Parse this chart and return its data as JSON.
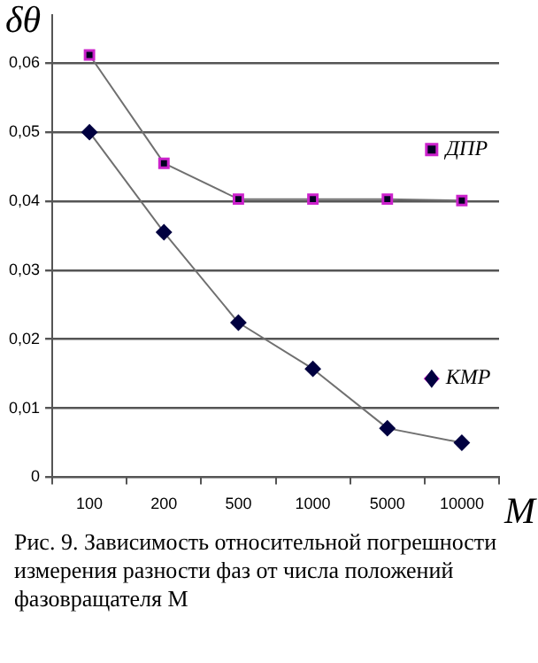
{
  "chart_data": {
    "type": "line",
    "title": "Рис. 9. Зависимость относительной погрешности измерения разности фаз от числа положений фазовращателя M",
    "xlabel": "M",
    "ylabel": "δθ",
    "categories": [
      "100",
      "200",
      "500",
      "1000",
      "5000",
      "10000"
    ],
    "series": [
      {
        "name": "ДПР",
        "color": "#cc22cc",
        "marker": "square",
        "values": [
          0.0612,
          0.0455,
          0.0403,
          0.0403,
          0.0403,
          0.0401
        ]
      },
      {
        "name": "КМР",
        "color": "#000040",
        "marker": "diamond",
        "values": [
          0.05,
          0.0355,
          0.0224,
          0.0157,
          0.0071,
          0.005
        ]
      }
    ],
    "ylim": [
      0,
      0.067
    ],
    "yticks": [
      0,
      {
        "value": 0.01,
        "label": "0,01"
      },
      {
        "value": 0.02,
        "label": "0,02"
      },
      {
        "value": 0.03,
        "label": "0,03"
      },
      {
        "value": 0.04,
        "label": "0,04"
      },
      {
        "value": 0.05,
        "label": "0,05"
      },
      {
        "value": 0.06,
        "label": "0,06"
      }
    ],
    "grid": "y",
    "legend": "right"
  }
}
